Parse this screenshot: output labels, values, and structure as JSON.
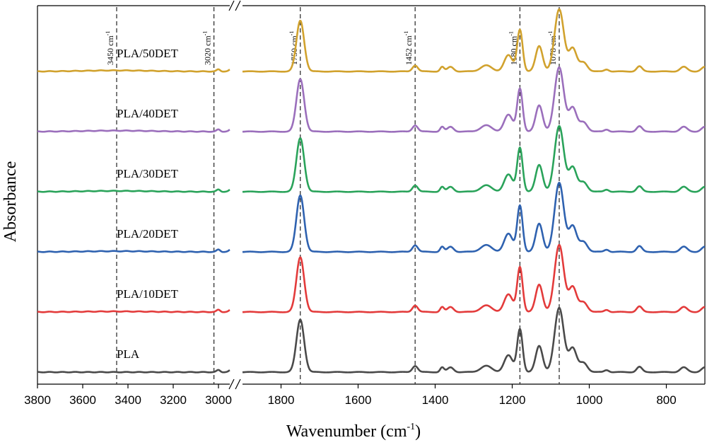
{
  "chart_data": {
    "type": "line",
    "title": "",
    "xlabel": "Wavenumber (cm",
    "xlabel_sup": "-1",
    "xlabel_close": ")",
    "ylabel": "Absorbance",
    "x_axis_break": true,
    "x_reversed": true,
    "xlim_left_segment": [
      3800,
      2950
    ],
    "xlim_right_segment": [
      1900,
      700
    ],
    "ticks_left": [
      "3800",
      "3600",
      "3400",
      "3200",
      "3000"
    ],
    "ticks_right": [
      "1800",
      "1600",
      "1400",
      "1200",
      "1000",
      "800"
    ],
    "y_ticks": "none",
    "grid": false,
    "legend": "labels above each trace",
    "reference_lines": [
      {
        "x": 3450,
        "label": "3450 cm",
        "sup": "-1"
      },
      {
        "x": 3020,
        "label": "3020 cm",
        "sup": "-1"
      },
      {
        "x": 1750,
        "label": "1750 cm",
        "sup": "-1"
      },
      {
        "x": 1452,
        "label": "1452 cm",
        "sup": "-1"
      },
      {
        "x": 1180,
        "label": "1180 cm",
        "sup": "-1"
      },
      {
        "x": 1078,
        "label": "1078 cm",
        "sup": "-1"
      }
    ],
    "peaks": [
      {
        "x": 1750,
        "height": 1.0,
        "width": 10
      },
      {
        "x": 1452,
        "height": 0.12,
        "width": 7
      },
      {
        "x": 1382,
        "height": 0.09,
        "width": 5
      },
      {
        "x": 1360,
        "height": 0.09,
        "width": 8
      },
      {
        "x": 1268,
        "height": 0.12,
        "width": 14
      },
      {
        "x": 1210,
        "height": 0.32,
        "width": 11
      },
      {
        "x": 1180,
        "height": 0.82,
        "width": 7
      },
      {
        "x": 1130,
        "height": 0.5,
        "width": 9
      },
      {
        "x": 1078,
        "height": 1.22,
        "width": 12
      },
      {
        "x": 1043,
        "height": 0.45,
        "width": 10
      },
      {
        "x": 1015,
        "height": 0.18,
        "width": 10
      },
      {
        "x": 955,
        "height": 0.04,
        "width": 6
      },
      {
        "x": 870,
        "height": 0.1,
        "width": 7
      },
      {
        "x": 755,
        "height": 0.09,
        "width": 9
      },
      {
        "x": 700,
        "height": 0.09,
        "width": 9
      },
      {
        "x": 3000,
        "height": 0.04,
        "width": 8
      },
      {
        "x": 2945,
        "height": 0.04,
        "width": 8
      }
    ],
    "series": [
      {
        "name": "PLA",
        "color": "#4a4a4a",
        "offset": 0,
        "scale": 0.93,
        "oh_band": 0
      },
      {
        "name": "PLA/10DET",
        "color": "#e33b3b",
        "offset": 1,
        "scale": 0.97,
        "oh_band": 0.01
      },
      {
        "name": "PLA/20DET",
        "color": "#2f62b0",
        "offset": 2,
        "scale": 1.0,
        "oh_band": 0.012
      },
      {
        "name": "PLA/30DET",
        "color": "#2aa35a",
        "offset": 3,
        "scale": 0.95,
        "oh_band": 0.015
      },
      {
        "name": "PLA/40DET",
        "color": "#9b6fbc",
        "offset": 4,
        "scale": 0.93,
        "oh_band": 0.018
      },
      {
        "name": "PLA/50DET",
        "color": "#d1a22e",
        "offset": 5,
        "scale": 0.9,
        "oh_band": 0.02
      }
    ]
  }
}
